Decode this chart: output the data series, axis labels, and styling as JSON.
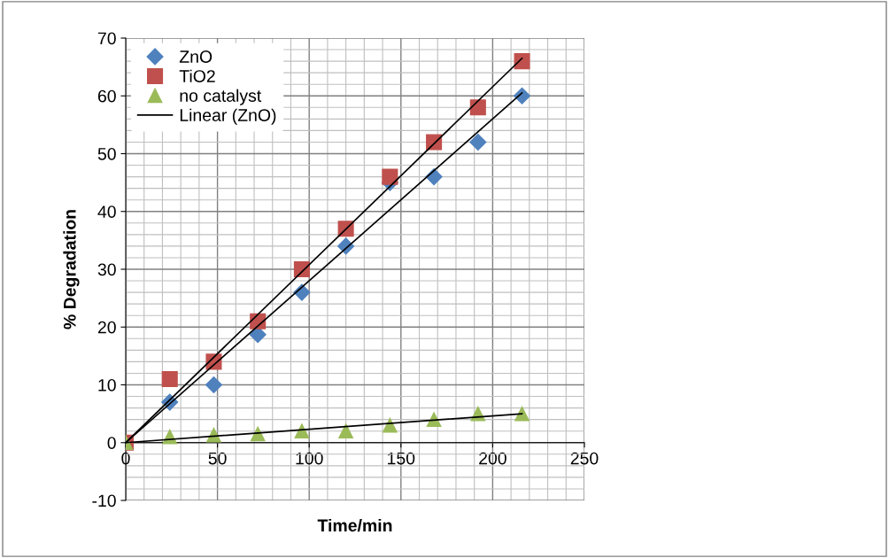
{
  "chart_data": {
    "type": "scatter",
    "xlabel": "Time/min",
    "ylabel": "% Degradation",
    "xlim": [
      0,
      250
    ],
    "xticks": [
      0,
      50,
      100,
      150,
      200,
      250
    ],
    "ylim": [
      -10,
      70
    ],
    "yticks": [
      -10,
      0,
      10,
      20,
      30,
      40,
      50,
      60,
      70
    ],
    "grid": true,
    "legend": "top left",
    "series": [
      {
        "name": "ZnO",
        "color": "#4f81bd",
        "marker": "diamond",
        "x": [
          24,
          48,
          72,
          96,
          120,
          144,
          168,
          192,
          216
        ],
        "values": [
          7,
          10,
          18.7,
          26,
          34,
          45,
          46,
          52,
          60
        ]
      },
      {
        "name": "TiO2",
        "color": "#c0504d",
        "marker": "square",
        "x": [
          0,
          24,
          48,
          72,
          96,
          120,
          144,
          168,
          192,
          216
        ],
        "values": [
          0,
          11,
          14,
          21,
          30,
          37,
          46,
          52,
          58,
          66
        ]
      },
      {
        "name": "no catalyst",
        "color": "#9bbb59",
        "marker": "triangle",
        "x": [
          0,
          24,
          48,
          72,
          96,
          120,
          144,
          168,
          192,
          216
        ],
        "values": [
          0,
          1,
          1.3,
          1.5,
          2,
          2,
          3,
          4,
          5,
          5
        ]
      },
      {
        "name": "Linear (ZnO)",
        "type": "line",
        "color": "#000000",
        "marker": "none",
        "x": [
          0,
          216
        ],
        "values": [
          0,
          60.5
        ]
      },
      {
        "type": "line",
        "color": "#000000",
        "marker": "none",
        "x": [
          0,
          216
        ],
        "values": [
          0,
          66.5
        ]
      },
      {
        "type": "line",
        "color": "#000000",
        "marker": "none",
        "x": [
          0,
          216
        ],
        "values": [
          0,
          5
        ]
      }
    ]
  }
}
